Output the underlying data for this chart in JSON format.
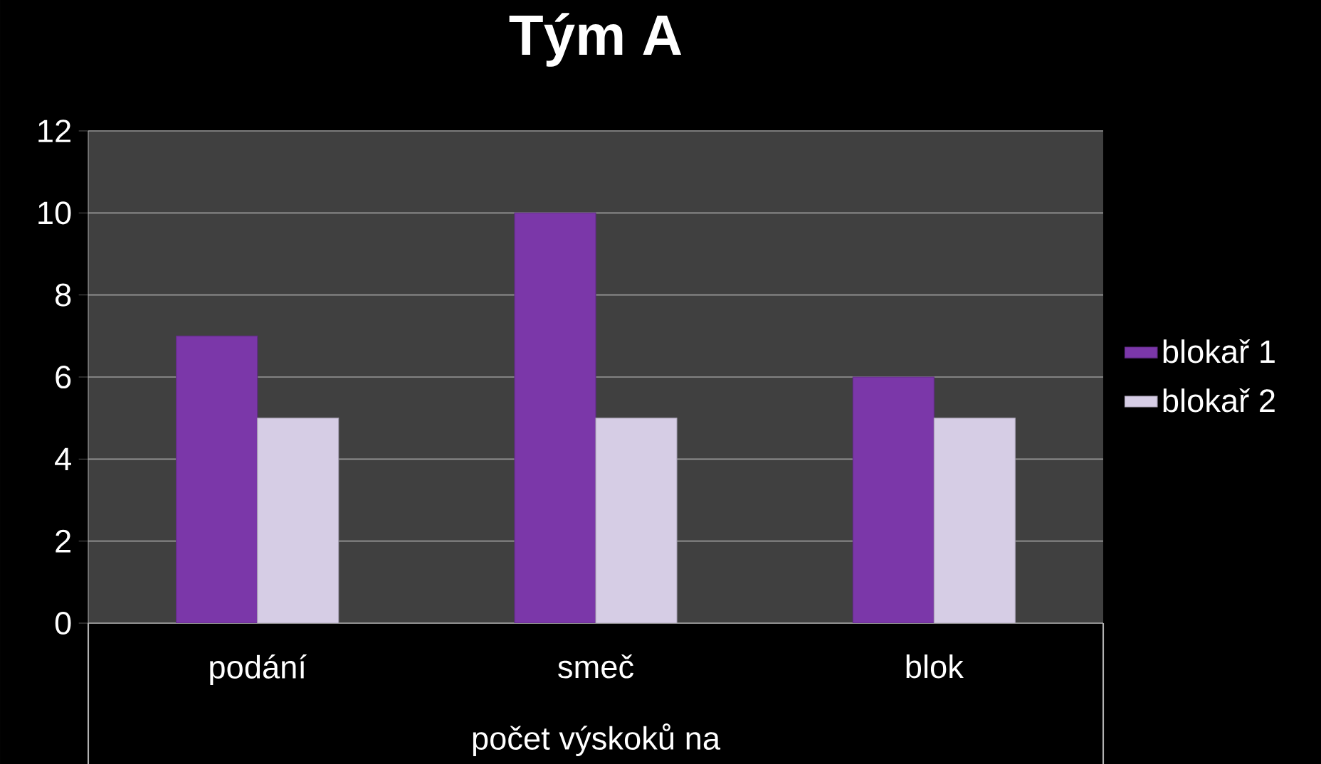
{
  "chart_data": {
    "type": "bar",
    "title": "Tým A",
    "xlabel": "počet výskoků na",
    "categories": [
      "podání",
      "smeč",
      "blok"
    ],
    "series": [
      {
        "name": "blokař 1",
        "color": "#7b37a9",
        "values": [
          7,
          10,
          6
        ]
      },
      {
        "name": "blokař 2",
        "color": "#d6cde5",
        "values": [
          5,
          5,
          5
        ]
      }
    ],
    "ylim": [
      0,
      12
    ],
    "yticks": [
      0,
      2,
      4,
      6,
      8,
      10,
      12
    ],
    "grid": "y",
    "legend": "right"
  }
}
